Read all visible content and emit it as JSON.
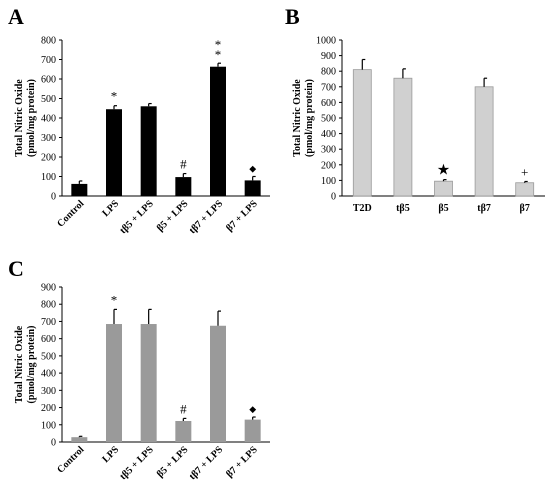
{
  "chart_data": [
    {
      "panel": "A",
      "type": "bar",
      "ylabel_lines": [
        "Total Nitric Oxide",
        "(pmol/mg protein)"
      ],
      "ylim": [
        0,
        800
      ],
      "yticks": [
        0,
        100,
        200,
        300,
        400,
        500,
        600,
        700,
        800
      ],
      "categories": [
        "Control",
        "LPS",
        "tβ5 + LPS",
        "β5 + LPS",
        "tβ7 + LPS",
        "β7 + LPS"
      ],
      "values": [
        62,
        445,
        460,
        97,
        663,
        80
      ],
      "errors": [
        15,
        18,
        14,
        18,
        18,
        20
      ],
      "annotations": [
        "",
        "*",
        "",
        "#",
        "**",
        "◆"
      ],
      "bar_color": "#000000",
      "grid": false,
      "tick_label_rotation": -45
    },
    {
      "panel": "B",
      "type": "bar",
      "ylabel_lines": [
        "Total Nitric Oxide",
        "(pmol/mg protein)"
      ],
      "ylim": [
        0,
        1000
      ],
      "yticks": [
        0,
        100,
        200,
        300,
        400,
        500,
        600,
        700,
        800,
        900,
        1000
      ],
      "categories": [
        "T2D",
        "tβ5",
        "β5",
        "tβ7",
        "β7"
      ],
      "values": [
        810,
        755,
        95,
        700,
        85
      ],
      "errors": [
        65,
        60,
        10,
        55,
        8
      ],
      "annotations": [
        "",
        "",
        "★",
        "",
        "+"
      ],
      "bar_color": "#d0d0d0",
      "grid": false,
      "tick_label_rotation": 0
    },
    {
      "panel": "C",
      "type": "bar",
      "ylabel_lines": [
        "Total Nitric Oxide",
        "(pmol/mg protein)"
      ],
      "ylim": [
        0,
        900
      ],
      "yticks": [
        0,
        100,
        200,
        300,
        400,
        500,
        600,
        700,
        800,
        900
      ],
      "categories": [
        "Control",
        "LPS",
        "tβ5 + LPS",
        "β5 + LPS",
        "tβ7 + LPS",
        "β7 + LPS"
      ],
      "values": [
        28,
        685,
        685,
        122,
        675,
        130
      ],
      "errors": [
        5,
        85,
        85,
        15,
        85,
        15
      ],
      "annotations": [
        "",
        "*",
        "",
        "#",
        "",
        "◆"
      ],
      "bar_color": "#9a9a9a",
      "grid": false,
      "tick_label_rotation": -45
    }
  ]
}
